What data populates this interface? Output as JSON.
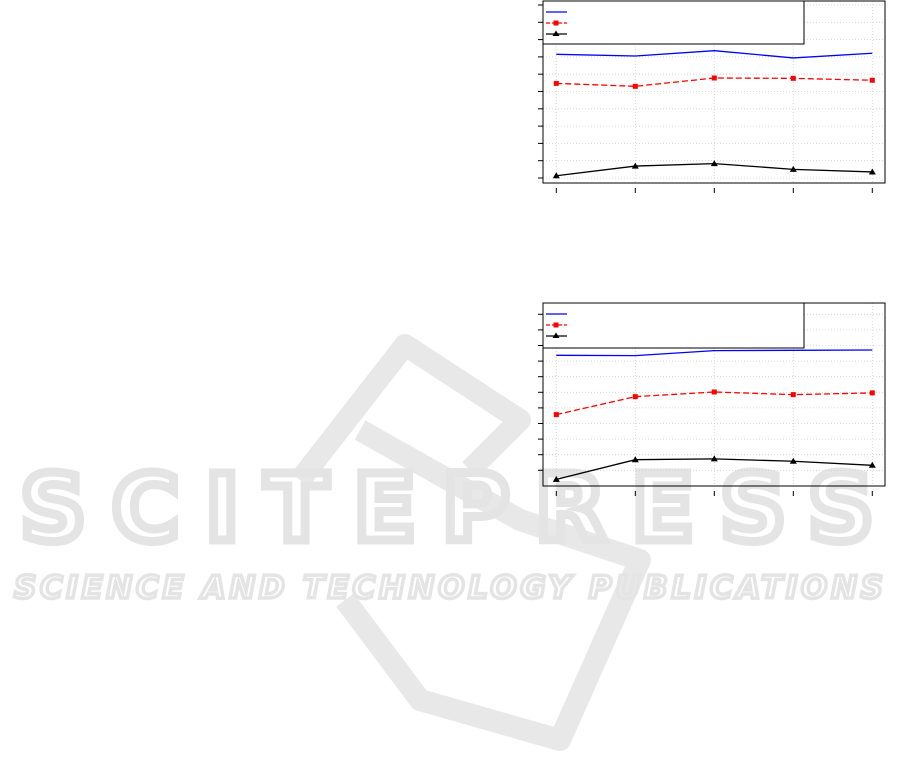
{
  "watermark": {
    "title": "SCITEPRESS",
    "subtitle": "SCIENCE AND TECHNOLOGY PUBLICATIONS",
    "color": "#e4e4e4"
  },
  "chart_data": [
    {
      "type": "line",
      "title": "",
      "xlabel": "",
      "ylabel": "",
      "x": [
        1,
        2,
        3,
        4,
        5
      ],
      "ylim": [
        0,
        10
      ],
      "y_ticks": 11,
      "grid": true,
      "legend_position": "top-left",
      "series": [
        {
          "color": "#0000ff",
          "style": "solid",
          "marker": "none",
          "values": [
            7.15,
            7.05,
            7.36,
            6.94,
            7.21
          ]
        },
        {
          "color": "#ff0000",
          "style": "dashed",
          "marker": "square",
          "values": [
            5.47,
            5.3,
            5.78,
            5.76,
            5.65
          ]
        },
        {
          "color": "#000000",
          "style": "solid",
          "marker": "triangle",
          "values": [
            0.13,
            0.69,
            0.83,
            0.5,
            0.35
          ]
        }
      ]
    },
    {
      "type": "line",
      "title": "",
      "xlabel": "",
      "ylabel": "",
      "x": [
        1,
        2,
        3,
        4,
        5
      ],
      "ylim": [
        0,
        10
      ],
      "y_ticks": 11,
      "grid": true,
      "legend_position": "top-left",
      "series": [
        {
          "color": "#0000ff",
          "style": "solid",
          "marker": "none",
          "values": [
            7.37,
            7.35,
            7.67,
            7.69,
            7.71
          ]
        },
        {
          "color": "#ff0000",
          "style": "dashed",
          "marker": "square",
          "values": [
            3.57,
            4.72,
            5.02,
            4.85,
            4.96
          ]
        },
        {
          "color": "#000000",
          "style": "solid",
          "marker": "triangle",
          "values": [
            -0.58,
            0.68,
            0.73,
            0.58,
            0.32
          ]
        }
      ]
    }
  ]
}
